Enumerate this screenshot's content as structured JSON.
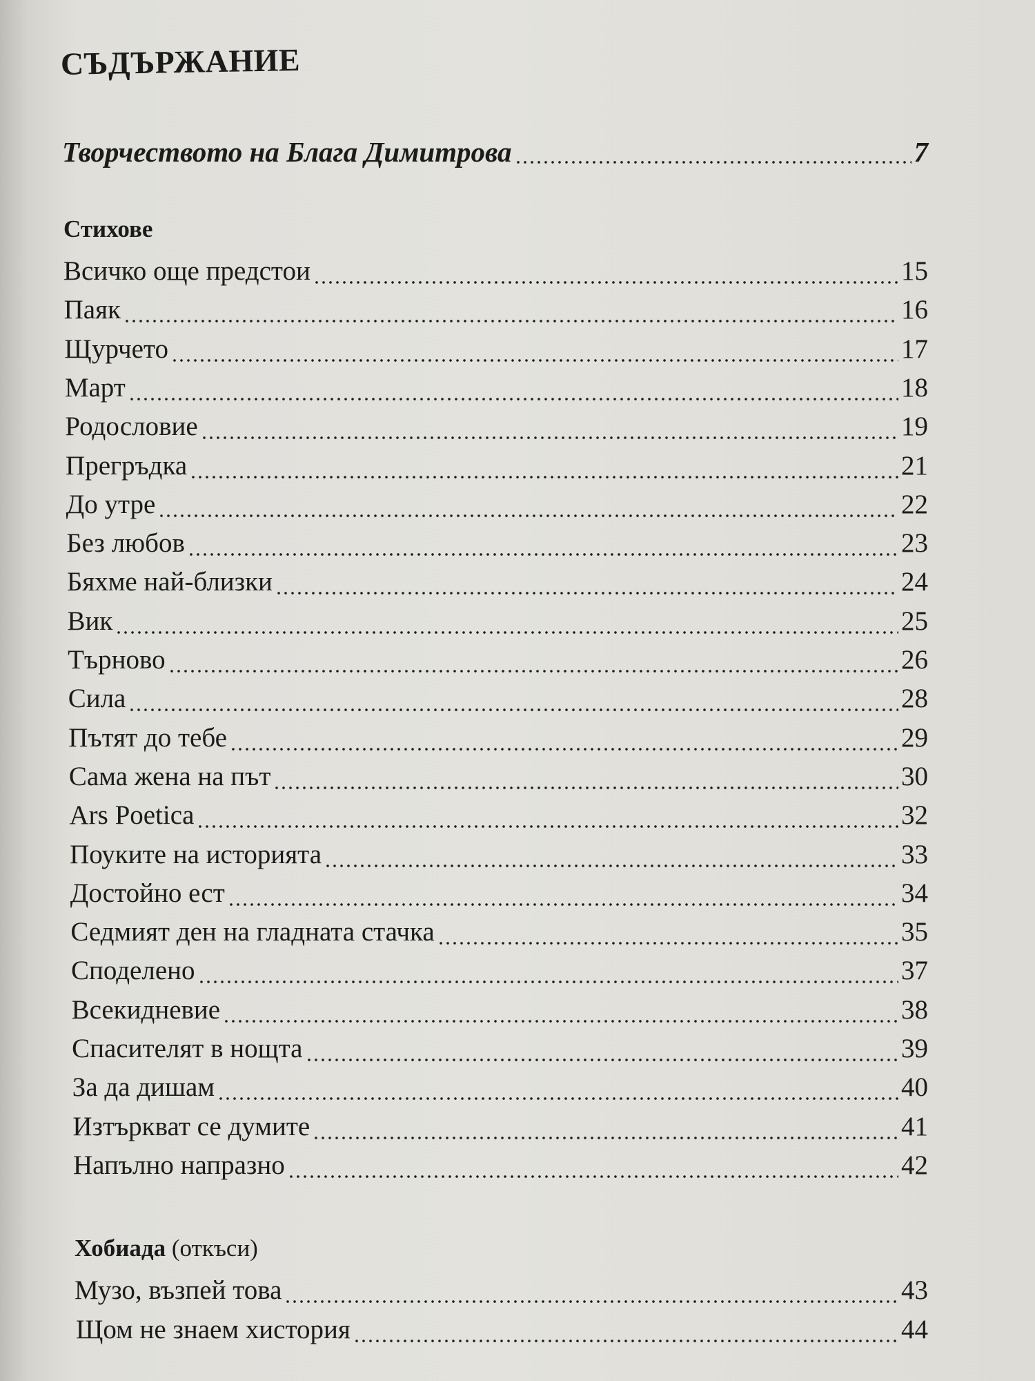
{
  "title": "СЪДЪРЖАНИЕ",
  "intro": {
    "label": "Творчеството на Блага Димитрова",
    "page": "7"
  },
  "sections": [
    {
      "heading": "Стихове",
      "heading_suffix": "",
      "entries": [
        {
          "label": "Всичко още предстои",
          "page": "15"
        },
        {
          "label": "Паяк",
          "page": "16"
        },
        {
          "label": "Щурчето",
          "page": "17"
        },
        {
          "label": "Март",
          "page": "18"
        },
        {
          "label": "Родословие",
          "page": "19"
        },
        {
          "label": "Прегръдка",
          "page": "21"
        },
        {
          "label": "До утре",
          "page": "22"
        },
        {
          "label": "Без любов",
          "page": "23"
        },
        {
          "label": "Бяхме най-близки",
          "page": "24"
        },
        {
          "label": "Вик",
          "page": "25"
        },
        {
          "label": "Търново",
          "page": "26"
        },
        {
          "label": "Сила",
          "page": "28"
        },
        {
          "label": "Пътят до тебе",
          "page": "29"
        },
        {
          "label": "Сама жена на път",
          "page": "30"
        },
        {
          "label": "Ars Poetica",
          "page": "32"
        },
        {
          "label": "Поуките на историята",
          "page": "33"
        },
        {
          "label": "Достойно ест",
          "page": "34"
        },
        {
          "label": "Седмият ден на гладната стачка",
          "page": "35"
        },
        {
          "label": "Споделено",
          "page": "37"
        },
        {
          "label": "Всекидневие",
          "page": "38"
        },
        {
          "label": "Спасителят в нощта",
          "page": "39"
        },
        {
          "label": "За да дишам",
          "page": "40"
        },
        {
          "label": "Изтъркват се думите",
          "page": "41"
        },
        {
          "label": "Напълно напразно",
          "page": "42"
        }
      ]
    },
    {
      "heading": "Хобиада",
      "heading_suffix": "(откъси)",
      "entries": [
        {
          "label": "Музо, възпей това",
          "page": "43"
        },
        {
          "label": "Щом не знаем хистория",
          "page": "44"
        }
      ]
    }
  ]
}
